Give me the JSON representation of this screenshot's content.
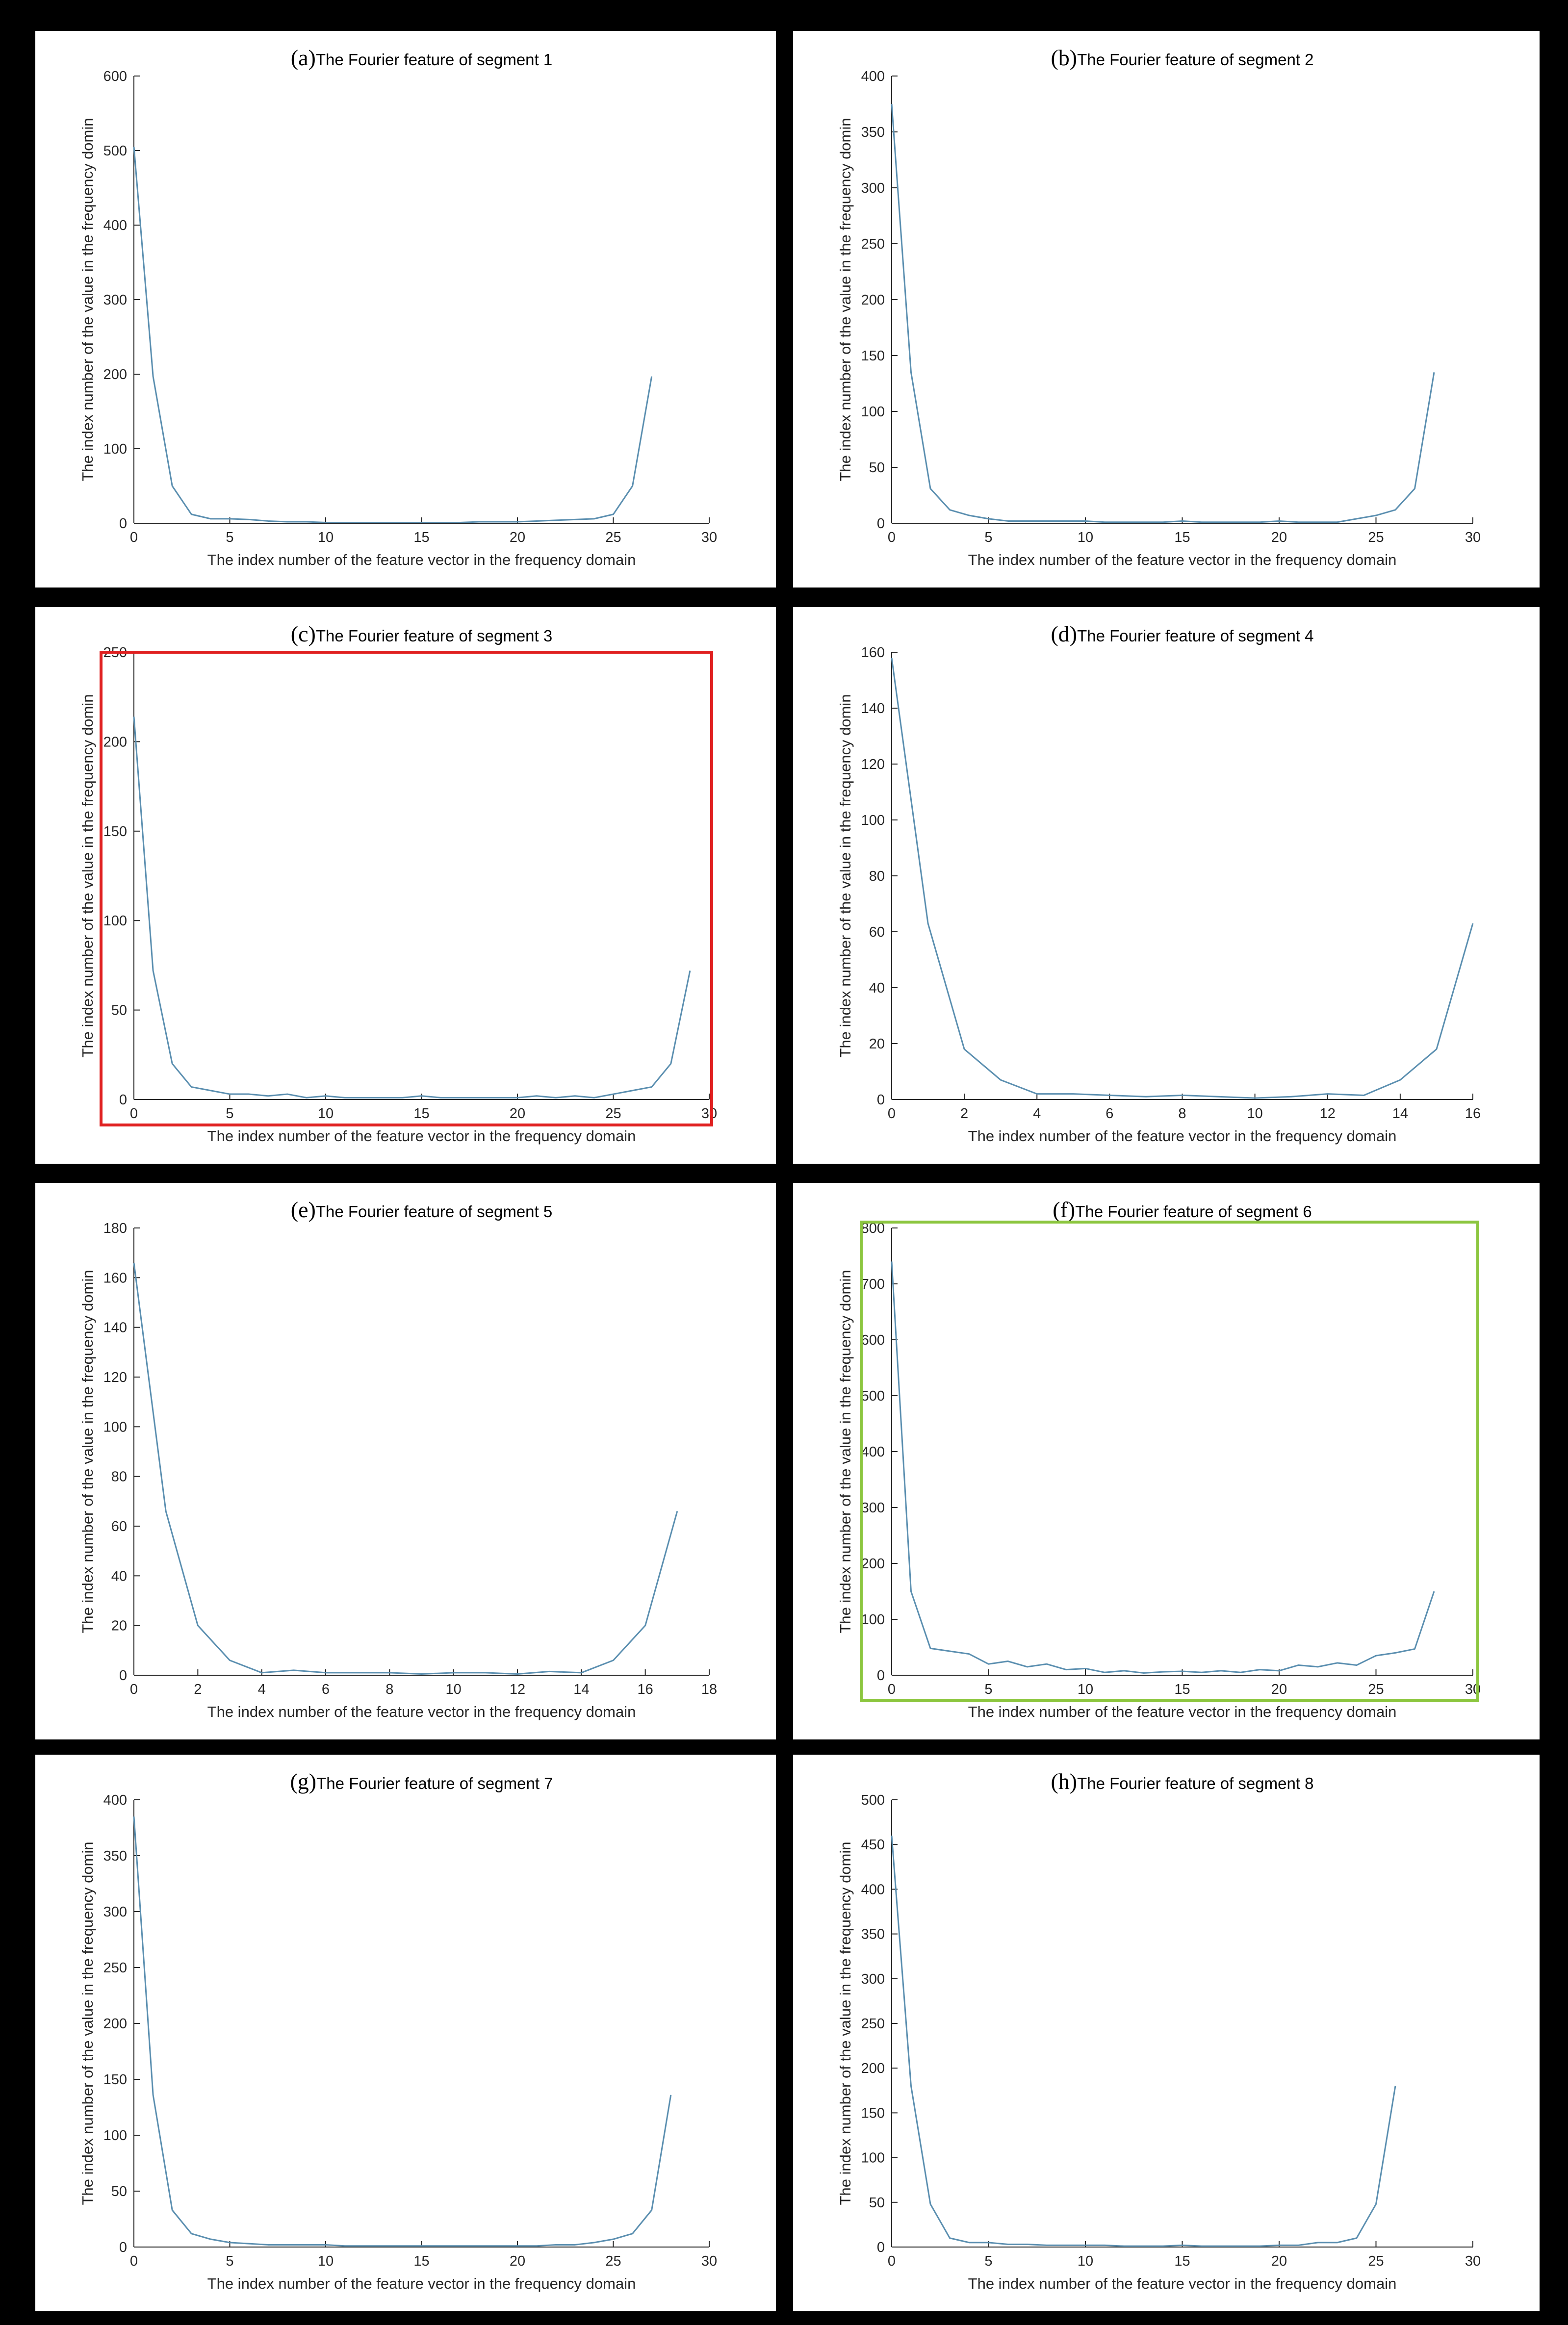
{
  "figure": {
    "background": "#000000",
    "panel_background": "#ffffff",
    "line_color": "#5b8fb0",
    "axis_color": "#262626",
    "highlight_red": "#e02020",
    "highlight_green": "#8cc63f"
  },
  "chart_data": [
    {
      "type": "line",
      "panel_label": "(a)",
      "title": "The Fourier feature of segment 1",
      "xlabel": "The index number of the feature vector in the frequency domain",
      "ylabel": "The index number of the value in the frequency domin",
      "xlim": [
        0,
        30
      ],
      "ylim": [
        0,
        600
      ],
      "xticks": [
        0,
        5,
        10,
        15,
        20,
        25,
        30
      ],
      "yticks": [
        0,
        100,
        200,
        300,
        400,
        500,
        600
      ],
      "x": [
        0,
        1,
        2,
        3,
        4,
        5,
        6,
        7,
        8,
        9,
        10,
        11,
        12,
        13,
        14,
        15,
        16,
        17,
        18,
        19,
        20,
        21,
        22,
        23,
        24,
        25,
        26,
        27
      ],
      "y": [
        505,
        197,
        50,
        12,
        6,
        6,
        5,
        3,
        2,
        2,
        1,
        1,
        1,
        1,
        1,
        1,
        1,
        1,
        2,
        2,
        2,
        3,
        4,
        5,
        6,
        12,
        50,
        197
      ],
      "highlight": null
    },
    {
      "type": "line",
      "panel_label": "(b)",
      "title": "The Fourier feature of segment 2",
      "xlabel": "The index number of the feature vector in the frequency domain",
      "ylabel": "The index number of the value in the frequency domin",
      "xlim": [
        0,
        30
      ],
      "ylim": [
        0,
        400
      ],
      "xticks": [
        0,
        5,
        10,
        15,
        20,
        25,
        30
      ],
      "yticks": [
        0,
        50,
        100,
        150,
        200,
        250,
        300,
        350,
        400
      ],
      "x": [
        0,
        1,
        2,
        3,
        4,
        5,
        6,
        7,
        8,
        9,
        10,
        11,
        12,
        13,
        14,
        15,
        16,
        17,
        18,
        19,
        20,
        21,
        22,
        23,
        24,
        25,
        26,
        27,
        28
      ],
      "y": [
        375,
        135,
        31,
        12,
        7,
        4,
        2,
        2,
        2,
        2,
        2,
        1,
        1,
        1,
        1,
        2,
        1,
        1,
        1,
        1,
        2,
        1,
        1,
        1,
        4,
        7,
        12,
        31,
        135
      ],
      "highlight": null
    },
    {
      "type": "line",
      "panel_label": "(c)",
      "title": "The Fourier feature of segment 3",
      "xlabel": "The index number of the feature vector in the frequency domain",
      "ylabel": "The index number of the value in the frequency domin",
      "xlim": [
        0,
        30
      ],
      "ylim": [
        0,
        250
      ],
      "xticks": [
        0,
        5,
        10,
        15,
        20,
        25,
        30
      ],
      "yticks": [
        0,
        50,
        100,
        150,
        200,
        250
      ],
      "x": [
        0,
        1,
        2,
        3,
        4,
        5,
        6,
        7,
        8,
        9,
        10,
        11,
        12,
        13,
        14,
        15,
        16,
        17,
        18,
        19,
        20,
        21,
        22,
        23,
        24,
        25,
        26,
        27,
        28,
        29
      ],
      "y": [
        214,
        72,
        20,
        7,
        5,
        3,
        3,
        2,
        3,
        1,
        2,
        1,
        1,
        1,
        1,
        2,
        1,
        1,
        1,
        1,
        1,
        2,
        1,
        2,
        1,
        3,
        5,
        7,
        20,
        72
      ],
      "highlight": "red"
    },
    {
      "type": "line",
      "panel_label": "(d)",
      "title": "The Fourier feature of segment 4",
      "xlabel": "The index number of the feature vector in the frequency domain",
      "ylabel": "The index number of the value in the frequency domin",
      "xlim": [
        0,
        16
      ],
      "ylim": [
        0,
        160
      ],
      "xticks": [
        0,
        2,
        4,
        6,
        8,
        10,
        12,
        14,
        16
      ],
      "yticks": [
        0,
        20,
        40,
        60,
        80,
        100,
        120,
        140,
        160
      ],
      "x": [
        0,
        1,
        2,
        3,
        4,
        5,
        6,
        7,
        8,
        9,
        10,
        11,
        12,
        13,
        14,
        15,
        16
      ],
      "y": [
        158,
        63,
        18,
        7,
        2,
        2,
        1.5,
        1,
        1.5,
        1,
        0.5,
        1,
        2,
        1.5,
        7,
        18,
        63
      ],
      "highlight": null
    },
    {
      "type": "line",
      "panel_label": "(e)",
      "title": "The Fourier feature of segment 5",
      "xlabel": "The index number of the feature vector in the frequency domain",
      "ylabel": "The index number of the value in the frequency domin",
      "xlim": [
        0,
        18
      ],
      "ylim": [
        0,
        180
      ],
      "xticks": [
        0,
        2,
        4,
        6,
        8,
        10,
        12,
        14,
        16,
        18
      ],
      "yticks": [
        0,
        20,
        40,
        60,
        80,
        100,
        120,
        140,
        160,
        180
      ],
      "x": [
        0,
        1,
        2,
        3,
        4,
        5,
        6,
        7,
        8,
        9,
        10,
        11,
        12,
        13,
        14,
        15,
        16,
        17
      ],
      "y": [
        166,
        66,
        20,
        6,
        1,
        2,
        1,
        1,
        1,
        0.5,
        1,
        1,
        0.5,
        1.5,
        1,
        6,
        20,
        66
      ],
      "highlight": null
    },
    {
      "type": "line",
      "panel_label": "(f)",
      "title": "The Fourier feature of segment 6",
      "xlabel": "The index number of the feature vector in the frequency domain",
      "ylabel": "The index number of the value in the frequency domin",
      "xlim": [
        0,
        30
      ],
      "ylim": [
        0,
        800
      ],
      "xticks": [
        0,
        5,
        10,
        15,
        20,
        25,
        30
      ],
      "yticks": [
        0,
        100,
        200,
        300,
        400,
        500,
        600,
        700,
        800
      ],
      "x": [
        0,
        1,
        2,
        3,
        4,
        5,
        6,
        7,
        8,
        9,
        10,
        11,
        12,
        13,
        14,
        15,
        16,
        17,
        18,
        19,
        20,
        21,
        22,
        23,
        24,
        25,
        26,
        27,
        28
      ],
      "y": [
        740,
        150,
        48,
        43,
        38,
        20,
        25,
        15,
        20,
        10,
        12,
        5,
        8,
        4,
        6,
        7,
        5,
        8,
        5,
        10,
        8,
        18,
        15,
        22,
        18,
        35,
        40,
        47,
        150
      ],
      "highlight": "green"
    },
    {
      "type": "line",
      "panel_label": "(g)",
      "title": "The Fourier feature of segment 7",
      "xlabel": "The index number of the feature vector in the frequency domain",
      "ylabel": "The index number of the value in the frequency domin",
      "xlim": [
        0,
        30
      ],
      "ylim": [
        0,
        400
      ],
      "xticks": [
        0,
        5,
        10,
        15,
        20,
        25,
        30
      ],
      "yticks": [
        0,
        50,
        100,
        150,
        200,
        250,
        300,
        350,
        400
      ],
      "x": [
        0,
        1,
        2,
        3,
        4,
        5,
        6,
        7,
        8,
        9,
        10,
        11,
        12,
        13,
        14,
        15,
        16,
        17,
        18,
        19,
        20,
        21,
        22,
        23,
        24,
        25,
        26,
        27,
        28
      ],
      "y": [
        385,
        136,
        33,
        12,
        7,
        4,
        3,
        2,
        2,
        2,
        2,
        1,
        1,
        1,
        1,
        1,
        1,
        1,
        1,
        1,
        1,
        1,
        2,
        2,
        4,
        7,
        12,
        33,
        136
      ],
      "highlight": null
    },
    {
      "type": "line",
      "panel_label": "(h)",
      "title": "The Fourier feature of segment 8",
      "xlabel": "The index number of the feature vector in the frequency domain",
      "ylabel": "The index number of the value in the frequency domin",
      "xlim": [
        0,
        30
      ],
      "ylim": [
        0,
        500
      ],
      "xticks": [
        0,
        5,
        10,
        15,
        20,
        25,
        30
      ],
      "yticks": [
        0,
        50,
        100,
        150,
        200,
        250,
        300,
        350,
        400,
        450,
        500
      ],
      "x": [
        0,
        1,
        2,
        3,
        4,
        5,
        6,
        7,
        8,
        9,
        10,
        11,
        12,
        13,
        14,
        15,
        16,
        17,
        18,
        19,
        20,
        21,
        22,
        23,
        24,
        25,
        26
      ],
      "y": [
        460,
        180,
        48,
        10,
        5,
        5,
        3,
        3,
        2,
        2,
        2,
        2,
        1,
        1,
        1,
        2,
        1,
        1,
        1,
        1,
        2,
        2,
        5,
        5,
        10,
        48,
        180
      ],
      "highlight": null
    }
  ]
}
